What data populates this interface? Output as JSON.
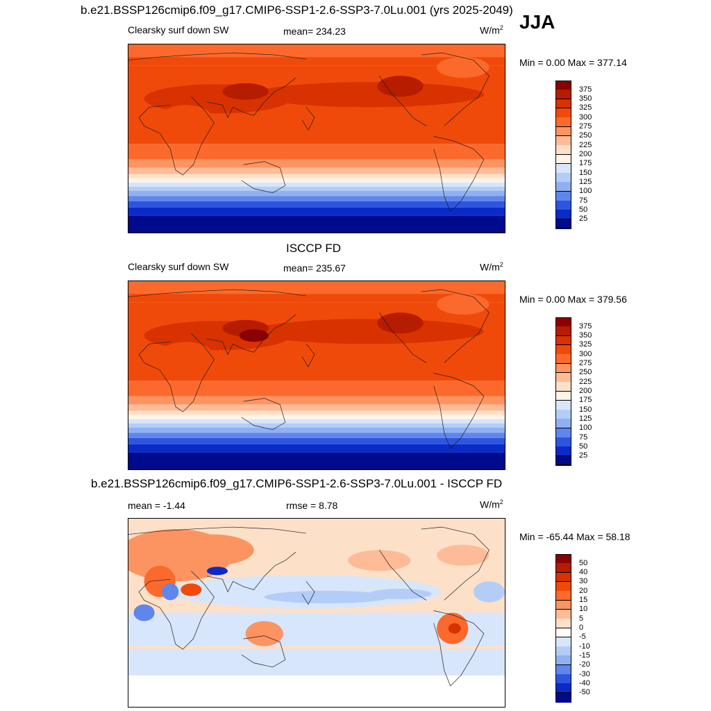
{
  "season": "JJA",
  "panels": [
    {
      "id": "model",
      "title": "b.e21.BSSP126cmip6.f09_g17.CMIP6-SSP1-2.6-SSP3-7.0Lu.001 (yrs 2025-2049)",
      "variable": "Clearsky surf down SW",
      "stat": "mean= 234.23",
      "units_base": "W/m",
      "units_exp": "2",
      "minmax": "Min =   0.00 Max = 377.14",
      "field": "model",
      "colorbar": {
        "labels": [
          "375",
          "350",
          "325",
          "300",
          "275",
          "250",
          "225",
          "200",
          "175",
          "150",
          "125",
          "100",
          "75",
          "50",
          "25"
        ],
        "colors": [
          "#8b0000",
          "#b61c00",
          "#d83200",
          "#f04a0a",
          "#fb6a2c",
          "#fc9462",
          "#fdbb98",
          "#fde0c8",
          "#fff4e8",
          "#d7e6fb",
          "#b3cdf7",
          "#8fb0f2",
          "#5e86ec",
          "#2e55e0",
          "#0a2bc8",
          "#000a8c"
        ]
      }
    },
    {
      "id": "obs",
      "title": "ISCCP FD",
      "variable": "Clearsky surf down SW",
      "stat": "mean= 235.67",
      "units_base": "W/m",
      "units_exp": "2",
      "minmax": "Min =   0.00 Max = 379.56",
      "field": "obs",
      "colorbar": {
        "labels": [
          "375",
          "350",
          "325",
          "300",
          "275",
          "250",
          "225",
          "200",
          "175",
          "150",
          "125",
          "100",
          "75",
          "50",
          "25"
        ],
        "colors": [
          "#8b0000",
          "#b61c00",
          "#d83200",
          "#f04a0a",
          "#fb6a2c",
          "#fc9462",
          "#fdbb98",
          "#fde0c8",
          "#fff4e8",
          "#d7e6fb",
          "#b3cdf7",
          "#8fb0f2",
          "#5e86ec",
          "#2e55e0",
          "#0a2bc8",
          "#000a8c"
        ]
      }
    },
    {
      "id": "diff",
      "title": "b.e21.BSSP126cmip6.f09_g17.CMIP6-SSP1-2.6-SSP3-7.0Lu.001 - ISCCP FD",
      "stat_left": "mean =  -1.44",
      "stat_mid": "rmse =   8.78",
      "units_base": "W/m",
      "units_exp": "2",
      "minmax": "Min = -65.44 Max =  58.18",
      "field": "diff",
      "colorbar": {
        "labels": [
          "50",
          "40",
          "30",
          "20",
          "15",
          "10",
          "5",
          "0",
          "-5",
          "-10",
          "-15",
          "-20",
          "-30",
          "-40",
          "-50"
        ],
        "colors": [
          "#8b0000",
          "#b61c00",
          "#d83200",
          "#f04a0a",
          "#fb6a2c",
          "#fc9462",
          "#fdbb98",
          "#fde0c8",
          "#ffffff",
          "#d7e6fb",
          "#b3cdf7",
          "#8fb0f2",
          "#5e86ec",
          "#2e55e0",
          "#0a2bc8",
          "#000a8c"
        ]
      }
    }
  ]
}
